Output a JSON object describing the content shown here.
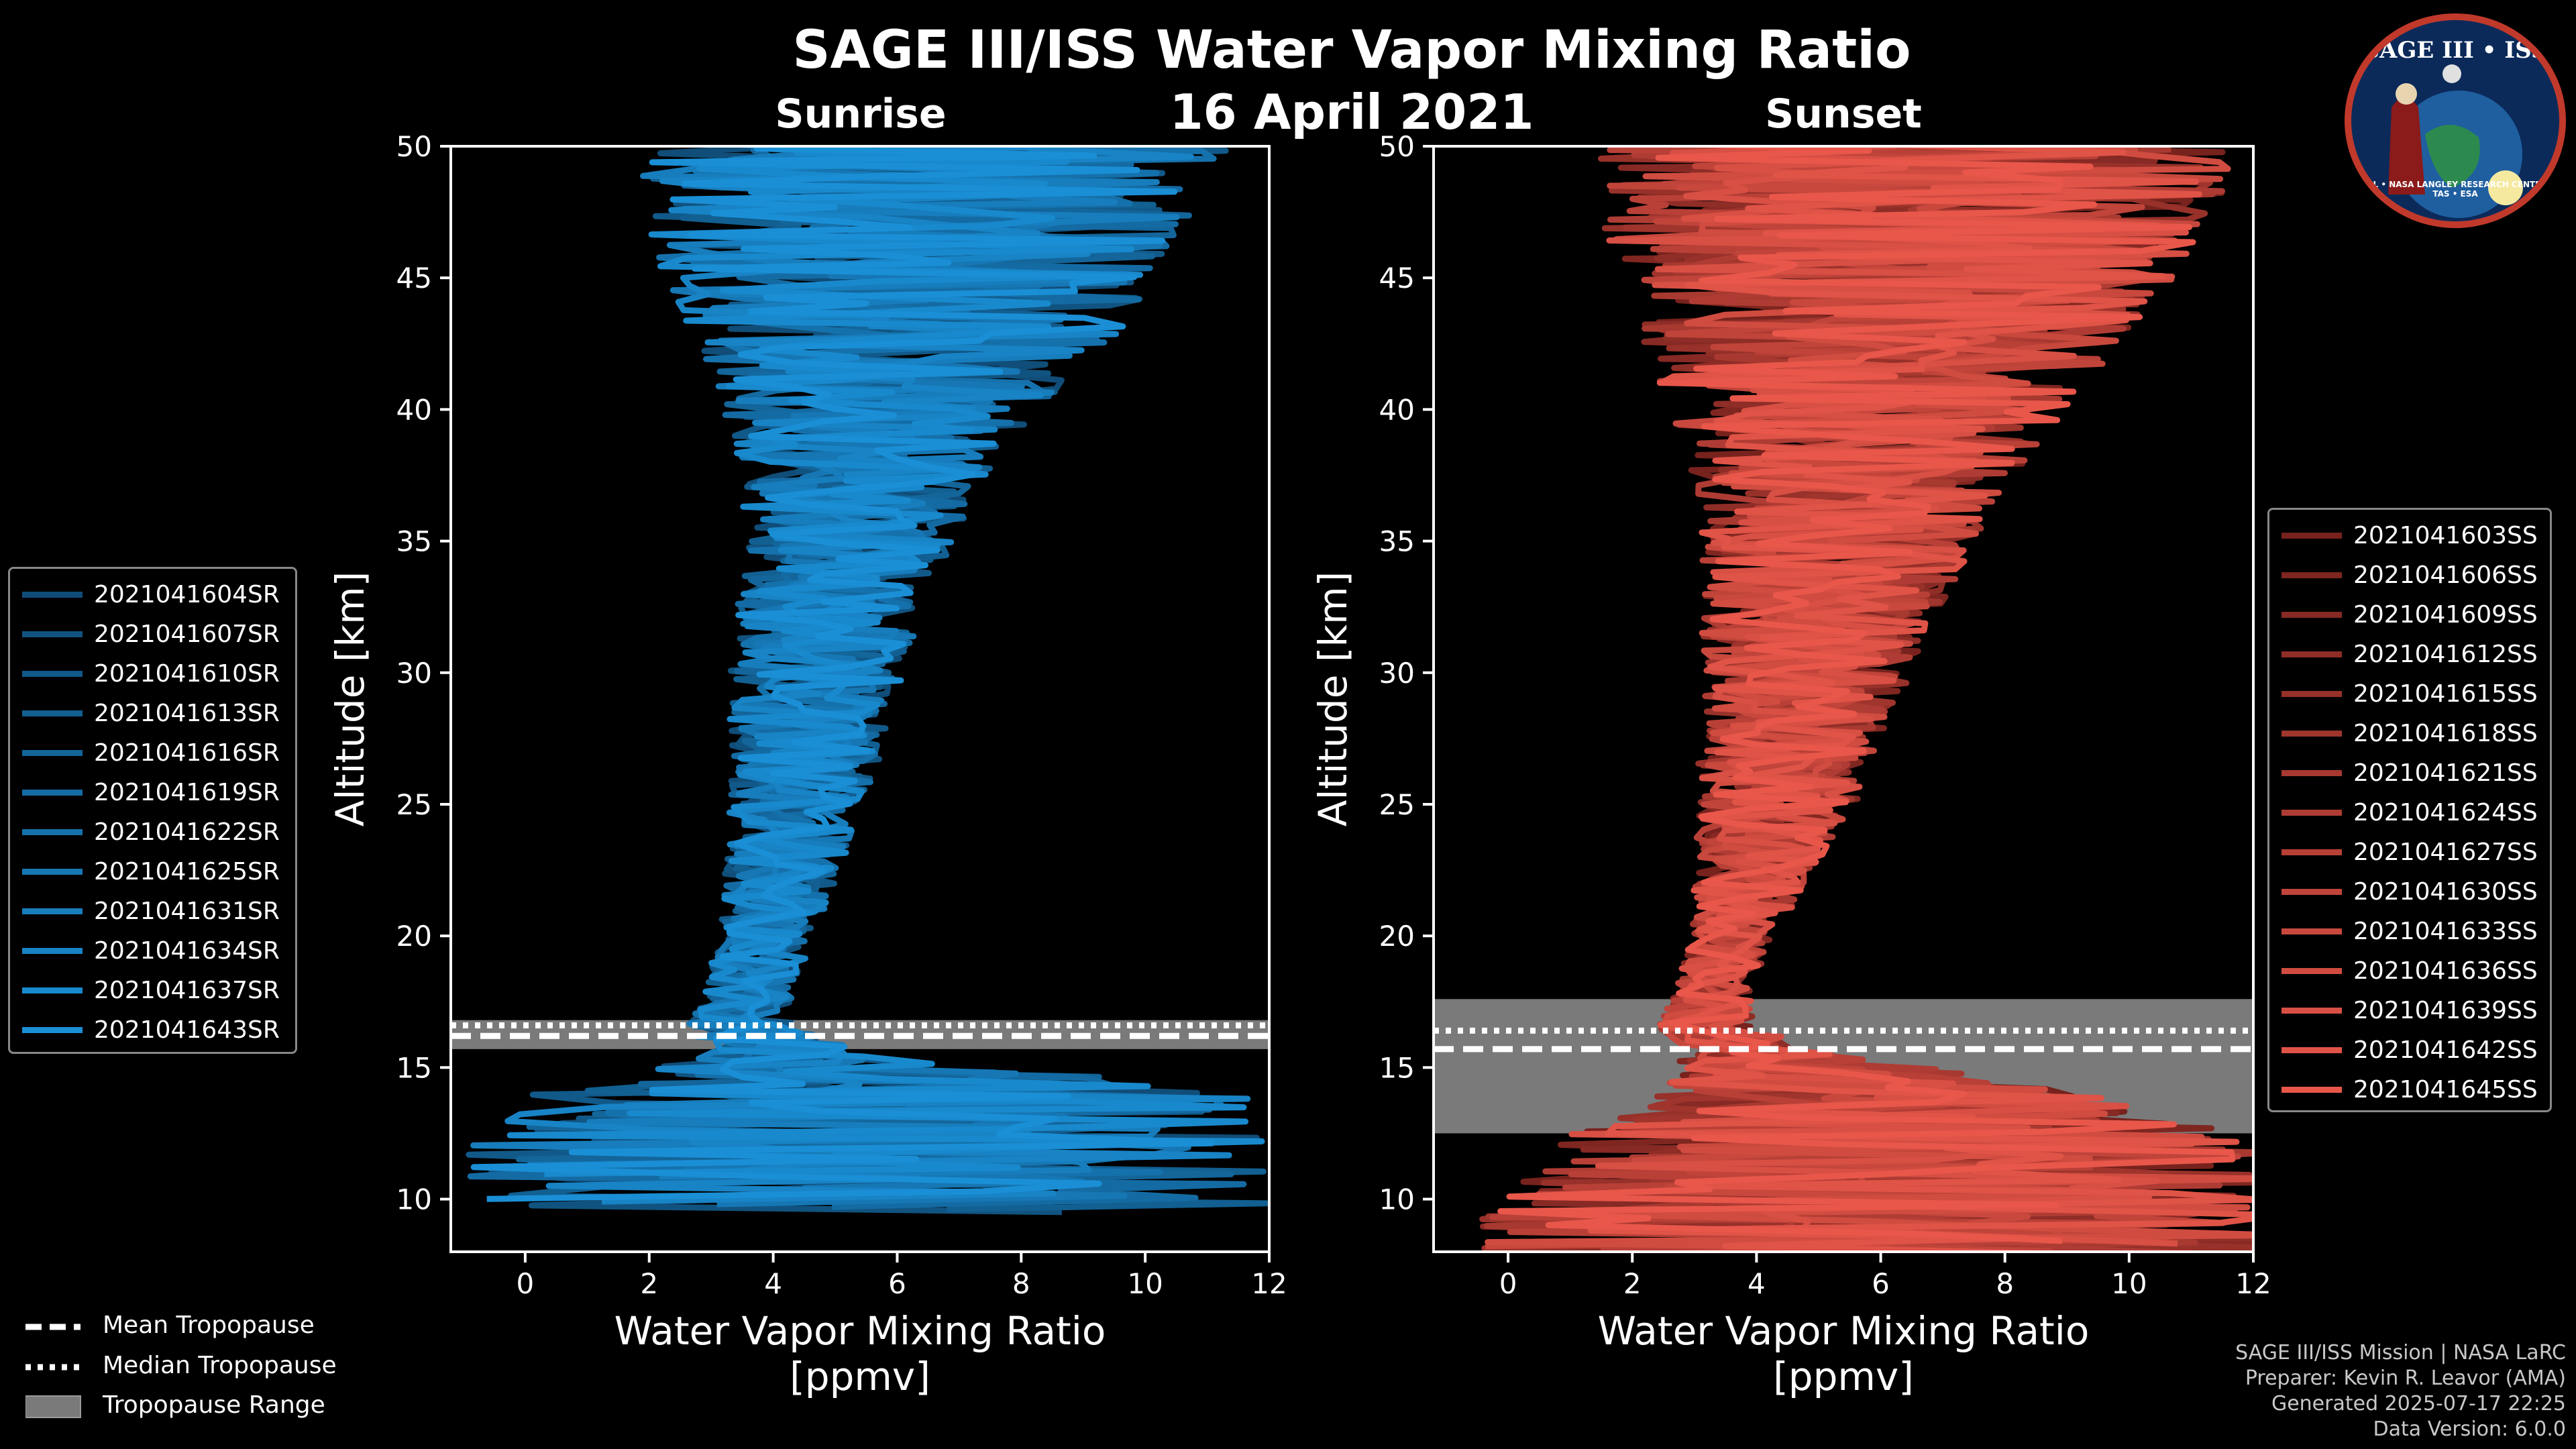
{
  "header": {
    "title": "SAGE III/ISS Water Vapor Mixing Ratio",
    "date": "16 April 2021",
    "sunrise_label": "Sunrise",
    "sunset_label": "Sunset"
  },
  "badge": {
    "title": "SAGE III • ISS",
    "bottom_text": "BALL • NASA LANGLEY RESEARCH CENTER • TAS • ESA"
  },
  "credits": {
    "line1": "SAGE III/ISS Mission | NASA LaRC",
    "line2": "Preparer: Kevin R. Leavor (AMA)",
    "line3": "Generated 2025-07-17 22:25",
    "line4": "Data Version: 6.0.0"
  },
  "tropopause_legend": {
    "mean": "Mean Tropopause",
    "median": "Median Tropopause",
    "range": "Tropopause Range"
  },
  "colors": {
    "sunrise": "#1a8fd6",
    "sunset": "#e8574a",
    "tropopause_range": "#7a7a7a",
    "background": "#000000"
  },
  "chart_data": [
    {
      "type": "line",
      "name": "sunrise",
      "title": "Sunrise",
      "xlabel": "Water Vapor Mixing Ratio",
      "xlabel2": "[ppmv]",
      "ylabel": "Altitude [km]",
      "xlim": [
        -1.2,
        12
      ],
      "ylim": [
        8,
        50
      ],
      "xticks": [
        "0",
        "2",
        "4",
        "6",
        "8",
        "10",
        "12"
      ],
      "yticks": [
        "10",
        "15",
        "20",
        "25",
        "30",
        "35",
        "40",
        "45",
        "50"
      ],
      "legend_location": "left",
      "tropopause": {
        "mean": 16.2,
        "median": 16.6,
        "range": [
          15.7,
          16.8
        ]
      },
      "series": [
        {
          "name": "2021041604SR"
        },
        {
          "name": "2021041607SR"
        },
        {
          "name": "2021041610SR"
        },
        {
          "name": "2021041613SR"
        },
        {
          "name": "2021041616SR"
        },
        {
          "name": "2021041619SR"
        },
        {
          "name": "2021041622SR"
        },
        {
          "name": "2021041625SR"
        },
        {
          "name": "2021041631SR"
        },
        {
          "name": "2021041634SR"
        },
        {
          "name": "2021041637SR"
        },
        {
          "name": "2021041643SR"
        }
      ],
      "envelope": {
        "altitudes": [
          12,
          14,
          15.5,
          16.5,
          18,
          20,
          22,
          25,
          28,
          30,
          32,
          35,
          37,
          40,
          43,
          46,
          49.5
        ],
        "center": [
          5.5,
          6.0,
          4.2,
          3.5,
          3.6,
          3.9,
          4.1,
          4.4,
          4.6,
          4.7,
          4.9,
          5.2,
          5.4,
          5.7,
          6.0,
          6.3,
          6.5
        ],
        "half_width": [
          6.5,
          6.0,
          1.4,
          0.9,
          0.7,
          0.8,
          0.9,
          1.1,
          1.3,
          1.4,
          1.5,
          1.7,
          1.9,
          2.6,
          3.6,
          4.2,
          4.8
        ]
      }
    },
    {
      "type": "line",
      "name": "sunset",
      "title": "Sunset",
      "xlabel": "Water Vapor Mixing Ratio",
      "xlabel2": "[ppmv]",
      "ylabel": "Altitude [km]",
      "xlim": [
        -1.2,
        12
      ],
      "ylim": [
        8,
        50
      ],
      "xticks": [
        "0",
        "2",
        "4",
        "6",
        "8",
        "10",
        "12"
      ],
      "yticks": [
        "10",
        "15",
        "20",
        "25",
        "30",
        "35",
        "40",
        "45",
        "50"
      ],
      "legend_location": "right",
      "tropopause": {
        "mean": 15.7,
        "median": 16.4,
        "range": [
          12.5,
          17.6
        ]
      },
      "series": [
        {
          "name": "2021041603SS"
        },
        {
          "name": "2021041606SS"
        },
        {
          "name": "2021041609SS"
        },
        {
          "name": "2021041612SS"
        },
        {
          "name": "2021041615SS"
        },
        {
          "name": "2021041618SS"
        },
        {
          "name": "2021041621SS"
        },
        {
          "name": "2021041624SS"
        },
        {
          "name": "2021041627SS"
        },
        {
          "name": "2021041630SS"
        },
        {
          "name": "2021041633SS"
        },
        {
          "name": "2021041636SS"
        },
        {
          "name": "2021041639SS"
        },
        {
          "name": "2021041642SS"
        },
        {
          "name": "2021041645SS"
        }
      ],
      "envelope": {
        "altitudes": [
          9,
          12,
          14,
          15.5,
          16.5,
          18,
          20,
          22,
          25,
          28,
          30,
          32,
          35,
          37,
          40,
          43,
          46,
          49.5
        ],
        "center": [
          6.0,
          6.5,
          6.0,
          4.0,
          3.2,
          3.3,
          3.6,
          3.9,
          4.3,
          4.6,
          4.8,
          5.0,
          5.3,
          5.5,
          5.8,
          6.0,
          6.3,
          6.6
        ],
        "half_width": [
          6.5,
          6.0,
          3.5,
          1.3,
          0.8,
          0.6,
          0.7,
          0.9,
          1.3,
          1.5,
          1.7,
          1.9,
          2.2,
          2.5,
          3.2,
          4.0,
          4.8,
          5.2
        ]
      }
    }
  ]
}
